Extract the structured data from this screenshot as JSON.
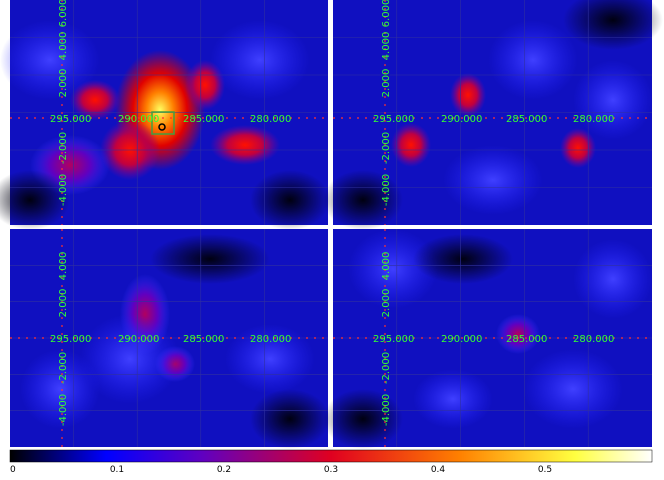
{
  "panels": {
    "longitude_labels": [
      "295.000",
      "290.000",
      "285.000",
      "280.000"
    ],
    "latitude_labels": [
      "6.000",
      "4.000",
      "2.000",
      "-2.000",
      "-4.000"
    ]
  },
  "colorbar": {
    "tick_labels": [
      "0",
      "0.1",
      "0.2",
      "0.3",
      "0.4",
      "0.5"
    ]
  }
}
